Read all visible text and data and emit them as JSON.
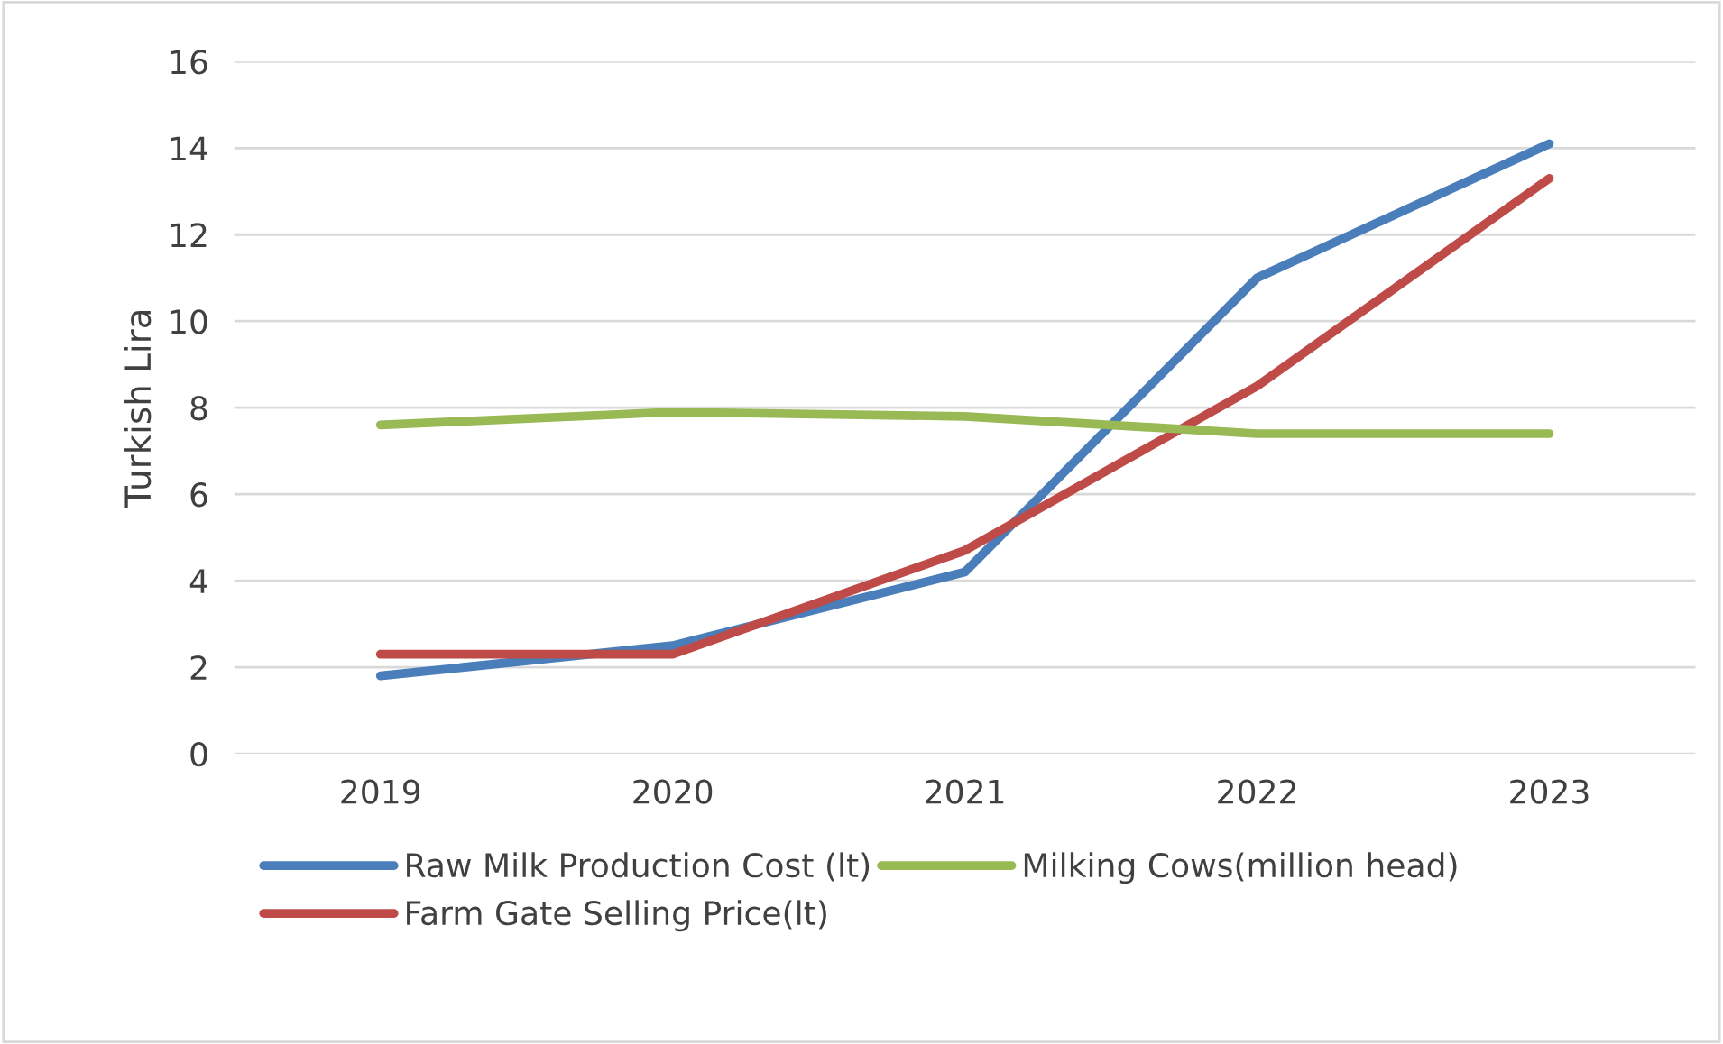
{
  "chart_data": {
    "type": "line",
    "ylabel": "Turkish Lira",
    "categories": [
      "2019",
      "2020",
      "2021",
      "2022",
      "2023"
    ],
    "series": [
      {
        "name": "Raw Milk Production Cost (lt)",
        "color": "#4a7ebb",
        "values": [
          1.8,
          2.5,
          4.2,
          11.0,
          14.1
        ]
      },
      {
        "name": "Farm Gate Selling Price(lt)",
        "color": "#be4b48",
        "values": [
          2.3,
          2.3,
          4.7,
          8.5,
          13.3
        ]
      },
      {
        "name": "Milking Cows(million head)",
        "color": "#98b954",
        "values": [
          7.6,
          7.9,
          7.8,
          7.4,
          7.4
        ]
      }
    ],
    "ylim": [
      0,
      16
    ],
    "yticks": [
      0,
      2,
      4,
      6,
      8,
      10,
      12,
      14,
      16
    ],
    "grid": "y",
    "legend": "bottom",
    "marker": "none",
    "line_style": "solid"
  }
}
